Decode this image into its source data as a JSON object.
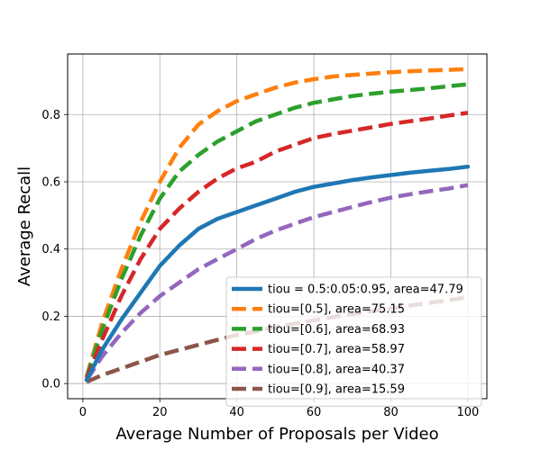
{
  "chart_data": {
    "type": "line",
    "title": "",
    "xlabel": "Average Number of Proposals per Video",
    "ylabel": "Average Recall",
    "xlim": [
      -3.95,
      104.95
    ],
    "ylim": [
      -0.045,
      0.98
    ],
    "xticks": [
      0,
      20,
      40,
      60,
      80,
      100
    ],
    "yticks": [
      0.0,
      0.2,
      0.4,
      0.6,
      0.8
    ],
    "xtick_labels": [
      "0",
      "20",
      "40",
      "60",
      "80",
      "100"
    ],
    "ytick_labels": [
      "0.0",
      "0.2",
      "0.4",
      "0.6",
      "0.8"
    ],
    "grid": true,
    "legend_position": "lower-right",
    "x": [
      1,
      5,
      10,
      15,
      20,
      25,
      30,
      35,
      40,
      45,
      50,
      55,
      60,
      65,
      70,
      75,
      80,
      85,
      90,
      95,
      100
    ],
    "series": [
      {
        "name": "tiou = 0.5:0.05:0.95, area=47.79",
        "color": "#1f77b4",
        "style": "solid",
        "values": [
          0.01,
          0.1,
          0.19,
          0.27,
          0.35,
          0.41,
          0.46,
          0.49,
          0.51,
          0.53,
          0.55,
          0.57,
          0.585,
          0.595,
          0.605,
          0.613,
          0.62,
          0.627,
          0.633,
          0.638,
          0.645
        ]
      },
      {
        "name": "tiou=[0.5], area=75.15",
        "color": "#ff7f0e",
        "style": "dashed",
        "values": [
          0.02,
          0.18,
          0.34,
          0.48,
          0.6,
          0.7,
          0.77,
          0.81,
          0.84,
          0.86,
          0.88,
          0.895,
          0.905,
          0.913,
          0.918,
          0.922,
          0.926,
          0.929,
          0.931,
          0.933,
          0.935
        ]
      },
      {
        "name": "tiou=[0.6], area=68.93",
        "color": "#2ca02c",
        "style": "dashed",
        "values": [
          0.02,
          0.16,
          0.31,
          0.44,
          0.55,
          0.63,
          0.68,
          0.72,
          0.75,
          0.78,
          0.8,
          0.82,
          0.835,
          0.845,
          0.855,
          0.862,
          0.868,
          0.873,
          0.878,
          0.884,
          0.89
        ]
      },
      {
        "name": "tiou=[0.7], area=58.97",
        "color": "#d62728",
        "style": "dashed",
        "values": [
          0.015,
          0.13,
          0.26,
          0.37,
          0.46,
          0.52,
          0.57,
          0.61,
          0.64,
          0.66,
          0.69,
          0.71,
          0.73,
          0.742,
          0.752,
          0.762,
          0.772,
          0.78,
          0.788,
          0.797,
          0.805
        ]
      },
      {
        "name": "tiou=[0.8], area=40.37",
        "color": "#9467bd",
        "style": "dashed",
        "values": [
          0.01,
          0.08,
          0.15,
          0.21,
          0.26,
          0.3,
          0.34,
          0.37,
          0.4,
          0.43,
          0.455,
          0.475,
          0.495,
          0.51,
          0.525,
          0.54,
          0.553,
          0.563,
          0.572,
          0.58,
          0.59
        ]
      },
      {
        "name": "tiou=[0.9], area=15.59",
        "color": "#8c564b",
        "style": "dashed",
        "values": [
          0.005,
          0.025,
          0.045,
          0.065,
          0.085,
          0.1,
          0.115,
          0.13,
          0.145,
          0.155,
          0.168,
          0.178,
          0.188,
          0.198,
          0.207,
          0.215,
          0.223,
          0.232,
          0.24,
          0.248,
          0.257
        ]
      }
    ]
  }
}
